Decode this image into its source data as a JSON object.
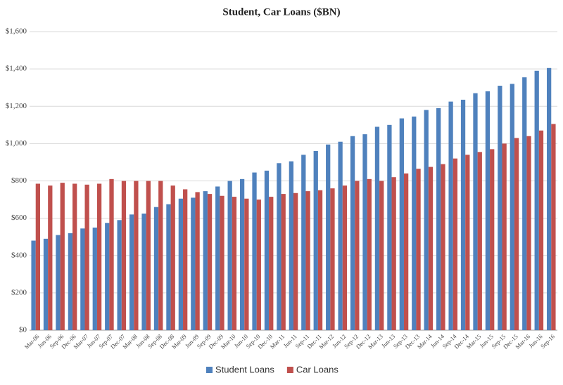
{
  "chart_data": {
    "type": "bar",
    "title": "Student, Car Loans ($BN)",
    "categories": [
      "Mar-06",
      "Jun-06",
      "Sep-06",
      "Dec-06",
      "Mar-07",
      "Jun-07",
      "Sep-07",
      "Dec-07",
      "Mar-08",
      "Jun-08",
      "Sep-08",
      "Dec-08",
      "Mar-09",
      "Jun-09",
      "Sep-09",
      "Dec-09",
      "Mar-10",
      "Jun-10",
      "Sep-10",
      "Dec-10",
      "Mar-11",
      "Jun-11",
      "Sep-11",
      "Dec-11",
      "Mar-12",
      "Jun-12",
      "Sep-12",
      "Dec-12",
      "Mar-13",
      "Jun-13",
      "Sep-13",
      "Dec-13",
      "Mar-14",
      "Jun-14",
      "Sep-14",
      "Dec-14",
      "Mar-15",
      "Jun-15",
      "Sep-15",
      "Dec-15",
      "Mar-16",
      "Jun-16",
      "Sep-16"
    ],
    "series": [
      {
        "name": "Student Loans",
        "color": "#4f81bd",
        "values": [
          480,
          490,
          510,
          520,
          545,
          550,
          575,
          590,
          620,
          625,
          660,
          675,
          705,
          710,
          745,
          770,
          800,
          810,
          845,
          855,
          895,
          905,
          940,
          960,
          995,
          1010,
          1040,
          1050,
          1090,
          1100,
          1135,
          1145,
          1180,
          1190,
          1225,
          1235,
          1270,
          1280,
          1310,
          1320,
          1355,
          1390,
          1405
        ]
      },
      {
        "name": "Car Loans",
        "color": "#c0504d",
        "values": [
          785,
          775,
          790,
          785,
          780,
          785,
          810,
          800,
          800,
          800,
          800,
          775,
          755,
          740,
          730,
          720,
          715,
          705,
          700,
          715,
          730,
          735,
          745,
          750,
          760,
          775,
          800,
          810,
          800,
          820,
          840,
          865,
          875,
          890,
          920,
          940,
          955,
          970,
          1000,
          1030,
          1040,
          1070,
          1105
        ]
      }
    ],
    "ylim": [
      0,
      1600
    ],
    "yticks": [
      {
        "value": 0,
        "label": "$0"
      },
      {
        "value": 200,
        "label": "$200"
      },
      {
        "value": 400,
        "label": "$400"
      },
      {
        "value": 600,
        "label": "$600"
      },
      {
        "value": 800,
        "label": "$800"
      },
      {
        "value": 1000,
        "label": "$1,000"
      },
      {
        "value": 1200,
        "label": "$1,200"
      },
      {
        "value": 1400,
        "label": "$1,400"
      },
      {
        "value": 1600,
        "label": "$1,600"
      }
    ],
    "grid": true,
    "legend": "bottom"
  }
}
